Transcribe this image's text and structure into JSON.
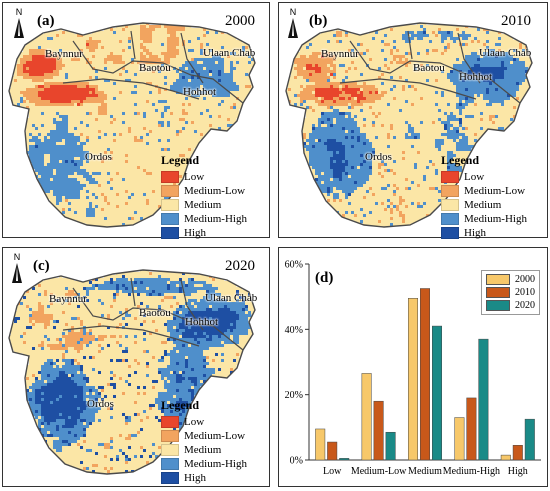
{
  "colors": {
    "low": "#e8452c",
    "medium_low": "#f2a45f",
    "medium": "#fbe6a6",
    "medium_high": "#4f8fcb",
    "high": "#1e4fa3",
    "boundary": "#4a4a4a",
    "bar_2000": "#f7c86a",
    "bar_2010": "#c8581a",
    "bar_2020": "#1a8a87"
  },
  "north_label": "N",
  "legend": {
    "title": "Legend",
    "items": [
      "Low",
      "Medium-Low",
      "Medium",
      "Medium-High",
      "High"
    ]
  },
  "cities": {
    "baynnur": "Baynnur",
    "baotou": "Baotou",
    "ulaan_chab": "Ulaan Chab",
    "hohhot": "Hohhot",
    "ordos": "Ordos"
  },
  "maps": [
    {
      "label": "(a)",
      "year": "2000"
    },
    {
      "label": "(b)",
      "year": "2010"
    },
    {
      "label": "(c)",
      "year": "2020"
    }
  ],
  "chart_data": {
    "type": "bar",
    "label": "(d)",
    "categories": [
      "Low",
      "Medium-Low",
      "Medium",
      "Medium-High",
      "High"
    ],
    "series": [
      {
        "name": "2000",
        "values": [
          9.5,
          26.5,
          49.5,
          13.0,
          1.5
        ]
      },
      {
        "name": "2010",
        "values": [
          5.5,
          18.0,
          52.5,
          19.0,
          4.5
        ]
      },
      {
        "name": "2020",
        "values": [
          0.5,
          8.5,
          41.0,
          37.0,
          12.5
        ]
      }
    ],
    "yticks": [
      "0%",
      "20%",
      "40%",
      "60%"
    ],
    "ylim": [
      0,
      60
    ],
    "legend_position": "top-right",
    "grid": false
  }
}
